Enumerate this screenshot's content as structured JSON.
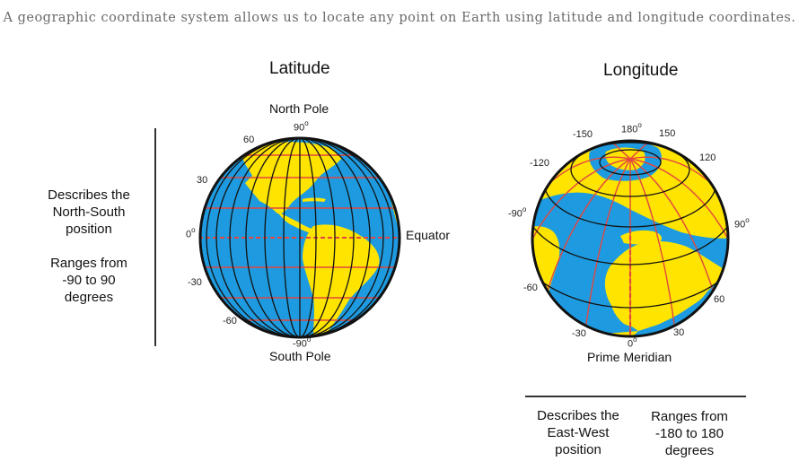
{
  "caption": "A geographic coordinate system allows us to locate any point on Earth using latitude and longitude coordinates.",
  "latitude": {
    "title": "Latitude",
    "north_pole": "North Pole",
    "south_pole": "South Pole",
    "equator": "Equator",
    "tick_top": "90",
    "tick_bottom": "-90",
    "tick_zero": "0",
    "tick_60": "60",
    "tick_30": "30",
    "tick_m30": "-30",
    "tick_m60": "-60",
    "desc_line1": "Describes the North-South position",
    "desc_line2": "Ranges from -90 to 90 degrees"
  },
  "longitude": {
    "title": "Longitude",
    "tick_180": "180",
    "tick_m150": "-150",
    "tick_150": "150",
    "tick_m120": "-120",
    "tick_120": "120",
    "tick_m90": "-90",
    "tick_90": "90",
    "tick_m60": "-60",
    "tick_60": "60",
    "tick_m30": "-30",
    "tick_30": "30",
    "tick_0": "0",
    "prime_meridian": "Prime Meridian",
    "desc_left": "Describes the East-West position",
    "desc_right": "Ranges from -180 to 180 degrees"
  },
  "colors": {
    "ocean": "#1e9be0",
    "land": "#ffe400",
    "grid": "#e2463f",
    "outline": "#111111"
  }
}
